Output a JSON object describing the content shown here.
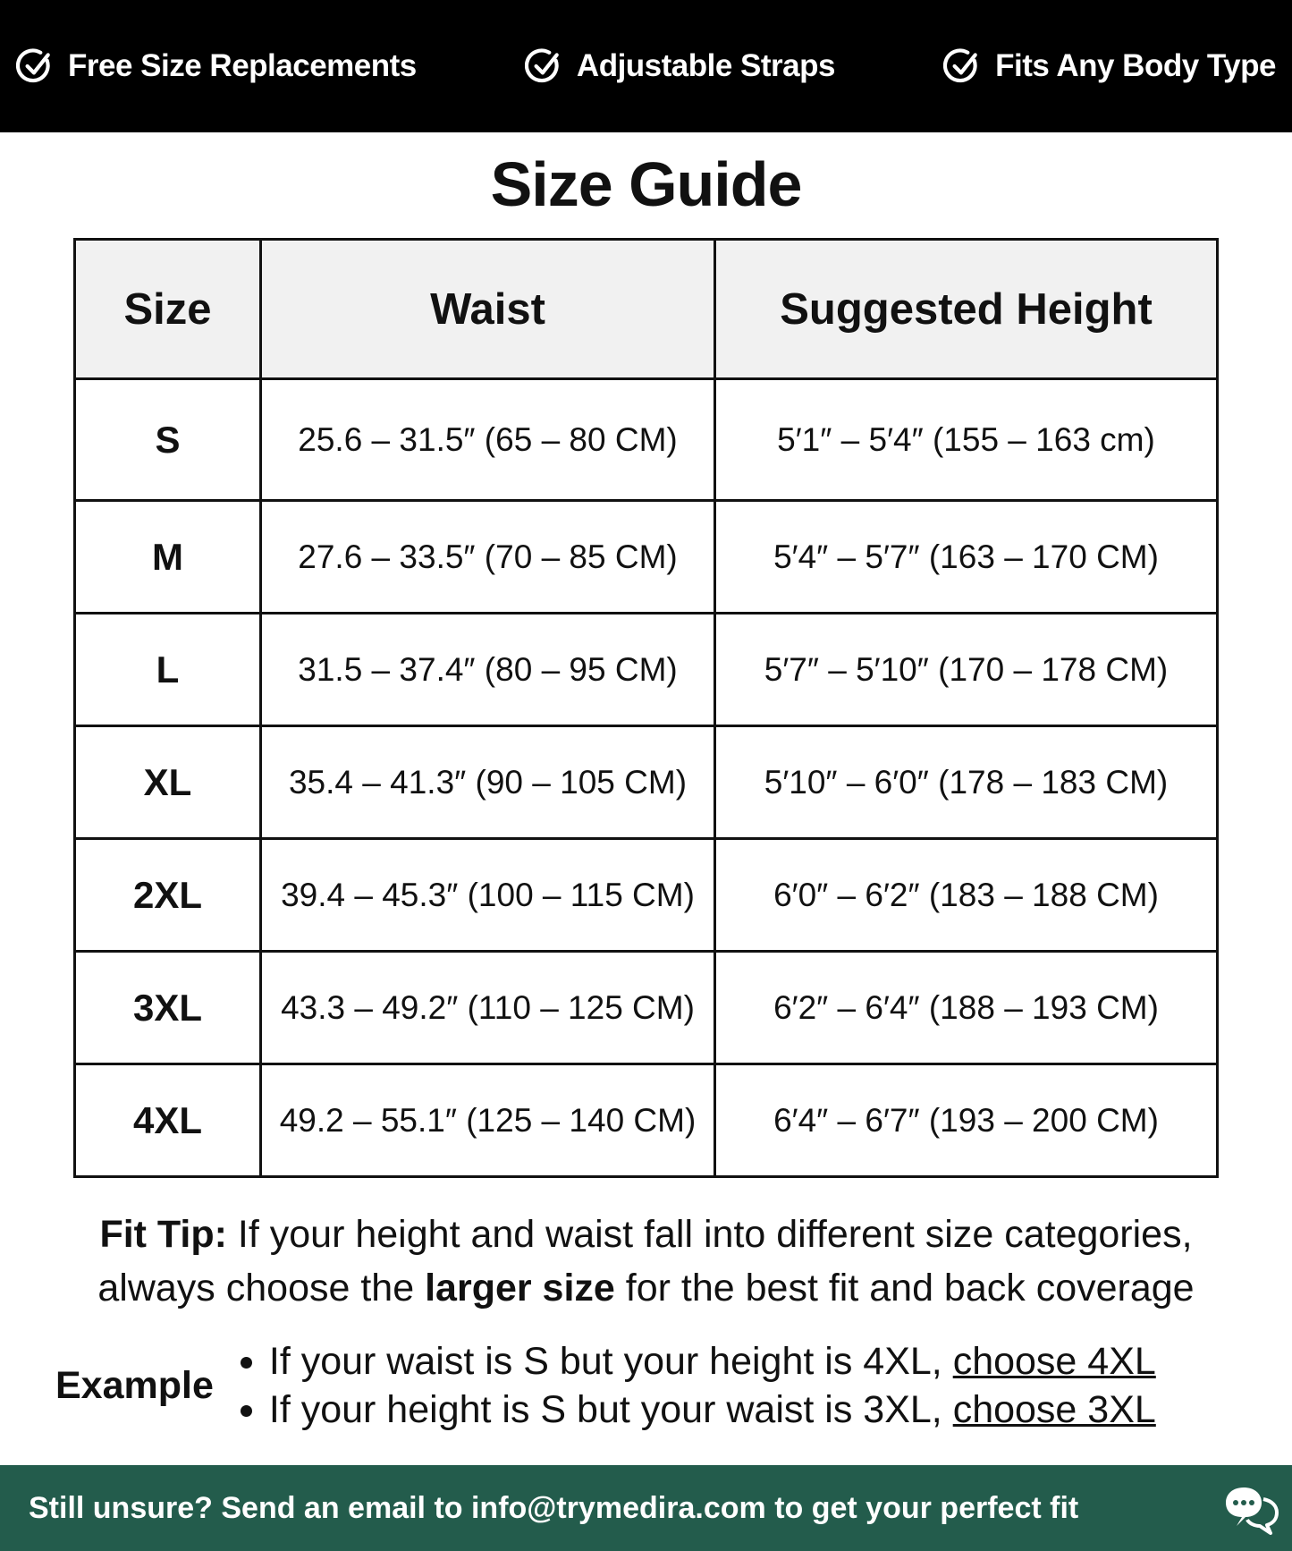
{
  "features": [
    {
      "label": "Free Size Replacements",
      "icon": "check-circle-icon"
    },
    {
      "label": "Adjustable Straps",
      "icon": "check-circle-icon"
    },
    {
      "label": "Fits Any Body Type",
      "icon": "check-circle-icon"
    }
  ],
  "title": "Size Guide",
  "table": {
    "headers": [
      "Size",
      "Waist",
      "Suggested Height"
    ],
    "rows": [
      [
        "S",
        "25.6 – 31.5″ (65 – 80 CM)",
        "5′1″ – 5′4″ (155 – 163 cm)"
      ],
      [
        "M",
        "27.6 – 33.5″ (70 – 85 CM)",
        "5′4″ – 5′7″ (163 – 170 CM)"
      ],
      [
        "L",
        "31.5 – 37.4″ (80 – 95 CM)",
        "5′7″ – 5′10″ (170 – 178 CM)"
      ],
      [
        "XL",
        "35.4 – 41.3″ (90 – 105 CM)",
        "5′10″ – 6′0″ (178 – 183 CM)"
      ],
      [
        "2XL",
        "39.4 – 45.3″ (100 – 115 CM)",
        "6′0″ – 6′2″ (183 – 188 CM)"
      ],
      [
        "3XL",
        "43.3 – 49.2″ (110 – 125 CM)",
        "6′2″ – 6′4″ (188 – 193 CM)"
      ],
      [
        "4XL",
        "49.2 – 55.1″ (125 – 140 CM)",
        "6′4″ – 6′7″ (193 – 200 CM)"
      ]
    ]
  },
  "fit_tip": {
    "label": "Fit Tip:",
    "text1": " If your height and waist fall into different size categories,",
    "text2": "always choose the ",
    "bold": "larger size",
    "text3": " for the best fit and back coverage"
  },
  "example": {
    "label": "Example",
    "items": [
      {
        "text": "If your waist is S but your height is 4XL, ",
        "link": "choose 4XL"
      },
      {
        "text": "If your height is S but your waist is 3XL, ",
        "link": "choose 3XL"
      }
    ]
  },
  "footer": {
    "text": "Still unsure? Send an email to info@trymedira.com to get your perfect fit",
    "icon": "chat-bubbles-icon"
  },
  "colors": {
    "topbar": "#000000",
    "footer": "#235c4c",
    "header_row": "#f1f1f1"
  }
}
